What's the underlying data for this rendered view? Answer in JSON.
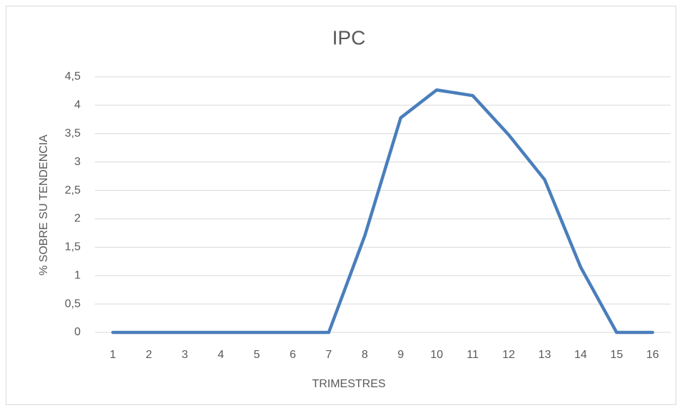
{
  "chart_data": {
    "type": "line",
    "title": "IPC",
    "x_label": "TRIMESTRES",
    "y_label": "% SOBRE SU TENDENCIA",
    "categories": [
      "1",
      "2",
      "3",
      "4",
      "5",
      "6",
      "7",
      "8",
      "9",
      "10",
      "11",
      "12",
      "13",
      "14",
      "15",
      "16"
    ],
    "series": [
      {
        "name": "IPC",
        "color": "#4a7ebb",
        "values": [
          0,
          0,
          0,
          0,
          0,
          0,
          0,
          1.7,
          3.78,
          4.27,
          4.17,
          3.48,
          2.69,
          1.15,
          0,
          0
        ]
      }
    ],
    "ylim": [
      0,
      4.5
    ],
    "yticks": [
      0,
      {
        "value": 0.5,
        "label": "0,5"
      },
      1,
      {
        "value": 1.5,
        "label": "1,5"
      },
      2,
      {
        "value": 2.5,
        "label": "2,5"
      },
      3,
      {
        "value": 3.5,
        "label": "3,5"
      },
      4,
      {
        "value": 4.5,
        "label": "4,5"
      }
    ],
    "grid": true
  }
}
